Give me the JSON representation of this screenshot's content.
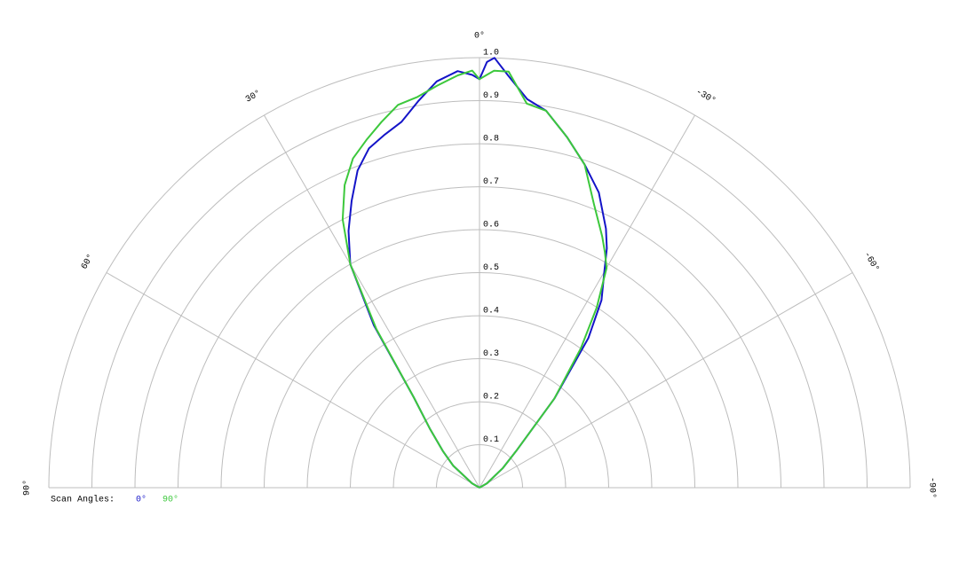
{
  "chart_data": {
    "type": "polar",
    "x": [
      90,
      60,
      50,
      45,
      40,
      36,
      33,
      30,
      27,
      24,
      21,
      18,
      15,
      12,
      9,
      6,
      3,
      1,
      0,
      -1,
      -2,
      -4,
      -7,
      -10,
      -14,
      -18,
      -22,
      -26,
      -28,
      -30,
      -33,
      -36,
      -40,
      -45,
      -50,
      -60,
      -90
    ],
    "series": [
      {
        "name": "0°",
        "color": "#1414c8",
        "values": [
          0,
          0.02,
          0.08,
          0.12,
          0.18,
          0.26,
          0.45,
          0.6,
          0.67,
          0.73,
          0.79,
          0.83,
          0.85,
          0.87,
          0.91,
          0.95,
          0.97,
          0.96,
          0.95,
          0.99,
          1.0,
          0.96,
          0.91,
          0.89,
          0.84,
          0.79,
          0.74,
          0.67,
          0.63,
          0.58,
          0.52,
          0.43,
          0.27,
          0.12,
          0.07,
          0.02,
          0
        ]
      },
      {
        "name": "90°",
        "color": "#3cc83c",
        "values": [
          0,
          0.02,
          0.08,
          0.12,
          0.18,
          0.26,
          0.44,
          0.6,
          0.7,
          0.77,
          0.82,
          0.85,
          0.88,
          0.91,
          0.92,
          0.94,
          0.96,
          0.97,
          0.95,
          0.96,
          0.97,
          0.97,
          0.9,
          0.89,
          0.84,
          0.79,
          0.71,
          0.65,
          0.62,
          0.59,
          0.5,
          0.4,
          0.27,
          0.12,
          0.07,
          0.02,
          0
        ]
      }
    ],
    "rlim": [
      0,
      1
    ],
    "rticks": [
      0.1,
      0.2,
      0.3,
      0.4,
      0.5,
      0.6,
      0.7,
      0.8,
      0.9,
      {
        "value": 1,
        "label": "1.0"
      }
    ],
    "thetaticks": [
      {
        "value": 90,
        "label": "90°"
      },
      {
        "value": 60,
        "label": "60°"
      },
      {
        "value": 30,
        "label": "30°"
      },
      {
        "value": 0,
        "label": "0°"
      },
      {
        "value": -30,
        "label": "-30°"
      },
      {
        "value": -60,
        "label": "-60°"
      },
      {
        "value": -90,
        "label": "-90°"
      }
    ],
    "legend_title": "Scan Angles:",
    "grid": true
  }
}
